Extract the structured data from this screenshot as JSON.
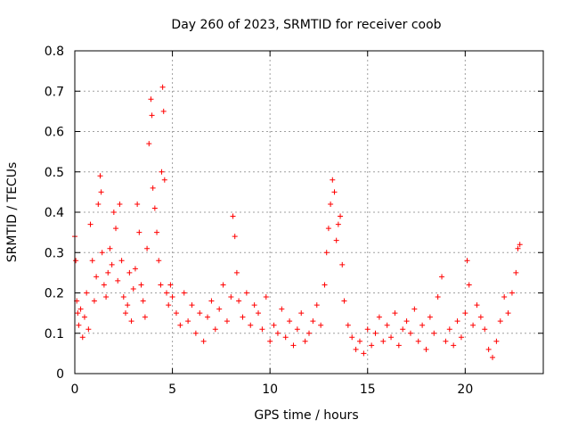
{
  "chart_data": {
    "type": "scatter",
    "title": "Day 260 of 2023, SRMTID for receiver coob",
    "xlabel": "GPS time / hours",
    "ylabel": "SRMTID / TECUs",
    "xlim": [
      0,
      24
    ],
    "ylim": [
      0,
      0.8
    ],
    "xticks": [
      0,
      5,
      10,
      15,
      20
    ],
    "xtick_labels": [
      "0",
      "5",
      "10",
      "15",
      "20"
    ],
    "yticks": [
      0,
      0.1,
      0.2,
      0.3,
      0.4,
      0.5,
      0.6,
      0.7,
      0.8
    ],
    "ytick_labels": [
      "0",
      "0.1",
      "0.2",
      "0.3",
      "0.4",
      "0.5",
      "0.6",
      "0.7",
      "0.8"
    ],
    "grid": true,
    "marker": "+",
    "color": "#ff0000",
    "series": [
      {
        "name": "SRMTID",
        "x": [
          0.0,
          0.05,
          0.1,
          0.15,
          0.2,
          0.3,
          0.4,
          0.5,
          0.6,
          0.7,
          0.8,
          0.9,
          1.0,
          1.1,
          1.2,
          1.3,
          1.35,
          1.4,
          1.5,
          1.6,
          1.7,
          1.8,
          1.9,
          2.0,
          2.1,
          2.2,
          2.3,
          2.4,
          2.5,
          2.6,
          2.7,
          2.8,
          2.9,
          3.0,
          3.1,
          3.2,
          3.3,
          3.4,
          3.5,
          3.6,
          3.7,
          3.8,
          3.9,
          3.95,
          4.0,
          4.1,
          4.2,
          4.3,
          4.4,
          4.45,
          4.5,
          4.55,
          4.6,
          4.7,
          4.8,
          4.9,
          5.0,
          5.2,
          5.4,
          5.6,
          5.8,
          6.0,
          6.2,
          6.4,
          6.6,
          6.8,
          7.0,
          7.2,
          7.4,
          7.6,
          7.8,
          8.0,
          8.1,
          8.2,
          8.3,
          8.4,
          8.6,
          8.8,
          9.0,
          9.2,
          9.4,
          9.6,
          9.8,
          10.0,
          10.2,
          10.4,
          10.6,
          10.8,
          11.0,
          11.2,
          11.4,
          11.6,
          11.8,
          12.0,
          12.2,
          12.4,
          12.6,
          12.8,
          12.9,
          13.0,
          13.1,
          13.2,
          13.3,
          13.4,
          13.5,
          13.6,
          13.7,
          13.8,
          14.0,
          14.2,
          14.4,
          14.6,
          14.8,
          15.0,
          15.2,
          15.4,
          15.6,
          15.8,
          16.0,
          16.2,
          16.4,
          16.6,
          16.8,
          17.0,
          17.2,
          17.4,
          17.6,
          17.8,
          18.0,
          18.2,
          18.4,
          18.6,
          18.8,
          19.0,
          19.2,
          19.4,
          19.6,
          19.8,
          20.0,
          20.1,
          20.2,
          20.4,
          20.6,
          20.8,
          21.0,
          21.2,
          21.4,
          21.6,
          21.8,
          22.0,
          22.2,
          22.4,
          22.6,
          22.7,
          22.8
        ],
        "y": [
          0.34,
          0.28,
          0.18,
          0.15,
          0.12,
          0.16,
          0.09,
          0.14,
          0.2,
          0.11,
          0.37,
          0.28,
          0.18,
          0.24,
          0.42,
          0.49,
          0.45,
          0.3,
          0.22,
          0.19,
          0.25,
          0.31,
          0.27,
          0.4,
          0.36,
          0.23,
          0.42,
          0.28,
          0.19,
          0.15,
          0.17,
          0.25,
          0.13,
          0.21,
          0.26,
          0.42,
          0.35,
          0.22,
          0.18,
          0.14,
          0.31,
          0.57,
          0.68,
          0.64,
          0.46,
          0.41,
          0.35,
          0.28,
          0.22,
          0.5,
          0.71,
          0.65,
          0.48,
          0.2,
          0.17,
          0.22,
          0.19,
          0.15,
          0.12,
          0.2,
          0.13,
          0.17,
          0.1,
          0.15,
          0.08,
          0.14,
          0.18,
          0.11,
          0.16,
          0.22,
          0.13,
          0.19,
          0.39,
          0.34,
          0.25,
          0.18,
          0.14,
          0.2,
          0.12,
          0.17,
          0.15,
          0.11,
          0.19,
          0.08,
          0.12,
          0.1,
          0.16,
          0.09,
          0.13,
          0.07,
          0.11,
          0.15,
          0.08,
          0.1,
          0.13,
          0.17,
          0.12,
          0.22,
          0.3,
          0.36,
          0.42,
          0.48,
          0.45,
          0.33,
          0.37,
          0.39,
          0.27,
          0.18,
          0.12,
          0.09,
          0.06,
          0.08,
          0.05,
          0.11,
          0.07,
          0.1,
          0.14,
          0.08,
          0.12,
          0.09,
          0.15,
          0.07,
          0.11,
          0.13,
          0.1,
          0.16,
          0.08,
          0.12,
          0.06,
          0.14,
          0.1,
          0.19,
          0.24,
          0.08,
          0.11,
          0.07,
          0.13,
          0.09,
          0.15,
          0.28,
          0.22,
          0.12,
          0.17,
          0.14,
          0.11,
          0.06,
          0.04,
          0.08,
          0.13,
          0.19,
          0.15,
          0.2,
          0.25,
          0.31,
          0.32
        ]
      }
    ]
  }
}
